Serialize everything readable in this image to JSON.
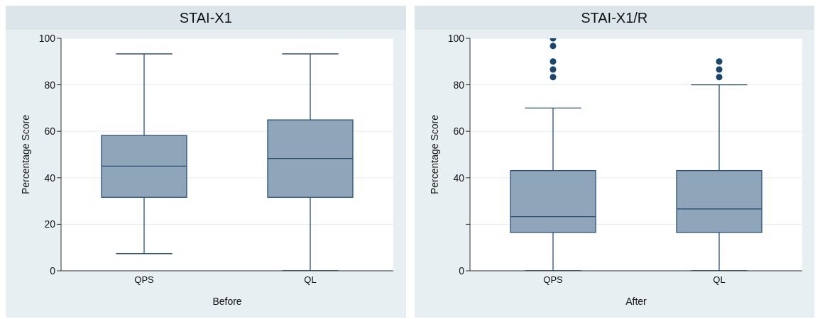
{
  "chart_data": [
    {
      "type": "box",
      "title": "STAI-X1",
      "xlabel": "Before",
      "ylabel": "Percentage Score",
      "categories": [
        "QPS",
        "QL"
      ],
      "color": "#8fa5b9",
      "ylim": [
        0,
        100
      ],
      "yticks": [
        0,
        20,
        40,
        60,
        80,
        100
      ],
      "grid": "y",
      "boxes": [
        {
          "low": 7.4,
          "q1": 31.6,
          "median": 45,
          "q3": 58.2,
          "high": 93.3
        },
        {
          "low": 0,
          "q1": 31.6,
          "median": 48.3,
          "q3": 64.9,
          "high": 93.3
        }
      ]
    },
    {
      "type": "box",
      "title": "STAI-X1/R",
      "xlabel": "After",
      "ylabel": "Percentage Score",
      "categories": [
        "QPS",
        "QL"
      ],
      "color": "#8fa5b9",
      "ylim": [
        0,
        100
      ],
      "yticks": [
        0,
        {
          "value": 20,
          "label": null
        },
        40,
        60,
        80,
        100
      ],
      "grid": "y",
      "boxes": [
        {
          "low": 0,
          "q1": 16.5,
          "median": 23.3,
          "q3": 43.1,
          "high": 70,
          "outliers": [
            100,
            96.7,
            90,
            86.6,
            83.3
          ]
        },
        {
          "low": 0,
          "q1": 16.5,
          "median": 26.6,
          "q3": 43.1,
          "high": 80,
          "outliers": [
            90,
            86.6,
            83.3
          ]
        }
      ]
    }
  ]
}
